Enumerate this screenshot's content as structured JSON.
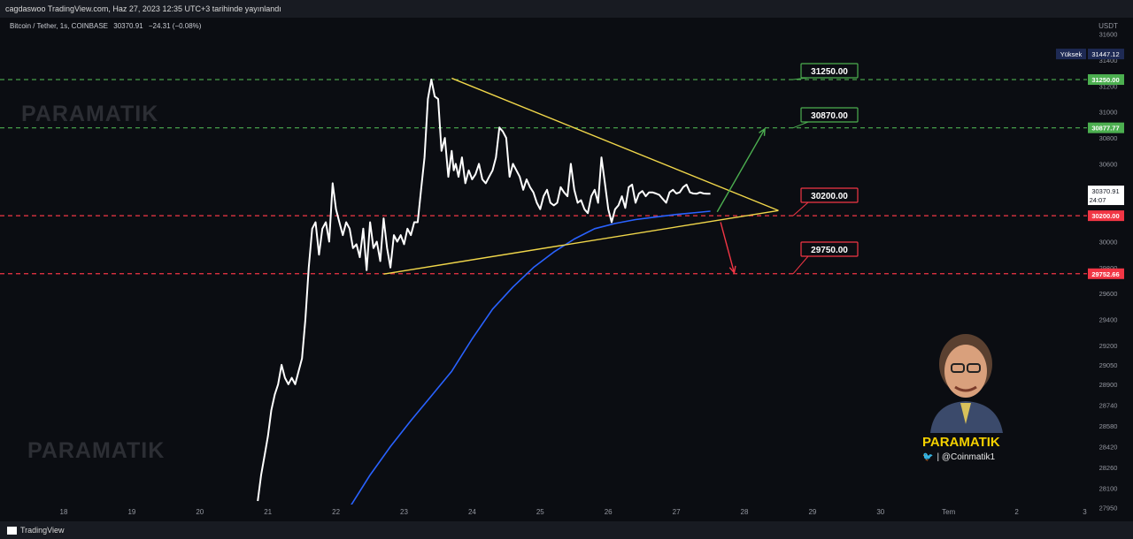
{
  "header": {
    "publish_text": "cagdaswoo TradingView.com, Haz 27, 2023 12:35 UTC+3 tarihinde yayınlandı"
  },
  "symbol": {
    "name": "Bitcoin / Tether, 1s, COINBASE",
    "last": "30370.91",
    "change": "−24.31 (−0.08%)"
  },
  "price_axis": {
    "currency": "USDT",
    "high_label": "Yüksek",
    "high_value": "31447.12",
    "current_price": "30370.91",
    "countdown": "24:07",
    "ticks": [
      27950,
      28100,
      28260,
      28420,
      28580,
      28740,
      28900,
      29050,
      29200,
      29400,
      29600,
      29800,
      30000,
      30200,
      30400,
      30600,
      30800,
      31000,
      31200,
      31400,
      31600
    ]
  },
  "time_axis": {
    "ticks": [
      "18",
      "19",
      "20",
      "21",
      "22",
      "23",
      "24",
      "25",
      "26",
      "27",
      "28",
      "29",
      "30",
      "Tem",
      "2",
      "3"
    ]
  },
  "levels": [
    {
      "label": "31250.00",
      "axis_label": "31250.00",
      "price": 31250,
      "color": "#4caf50"
    },
    {
      "label": "30870.00",
      "axis_label": "30877.77",
      "price": 30877.77,
      "color": "#4caf50"
    },
    {
      "label": "30200.00",
      "axis_label": "30200.00",
      "price": 30200,
      "color": "#f23645"
    },
    {
      "label": "29750.00",
      "axis_label": "29752.66",
      "price": 29752.66,
      "color": "#f23645"
    }
  ],
  "watermarks": [
    "PARAMATIK",
    "PARAMATIK"
  ],
  "branding": {
    "name": "PARAMATIK",
    "handle": "| @Coinmatik1",
    "footer": "TradingView"
  },
  "colors": {
    "background": "#0b0d12",
    "price_line": "#ffffff",
    "ma_line": "#2962ff",
    "triangle": "#f0d64a",
    "up_arrow": "#4caf50",
    "down_arrow": "#f23645"
  },
  "chart_data": {
    "type": "line",
    "title": "Bitcoin / Tether, 1s, COINBASE",
    "ylabel": "USDT",
    "ylim": [
      27850,
      31700
    ],
    "x_unit": "day of month (June 2023)",
    "series": [
      {
        "color": "#ffffff",
        "x": [
          20.85,
          20.9,
          20.95,
          21.0,
          21.05,
          21.1,
          21.15,
          21.2,
          21.25,
          21.3,
          21.35,
          21.4,
          21.45,
          21.5,
          21.55,
          21.6,
          21.65,
          21.7,
          21.75,
          21.8,
          21.85,
          21.9,
          21.95,
          22.0,
          22.05,
          22.1,
          22.15,
          22.2,
          22.25,
          22.3,
          22.35,
          22.4,
          22.45,
          22.5,
          22.55,
          22.6,
          22.65,
          22.7,
          22.75,
          22.8,
          22.85,
          22.9,
          22.95,
          23.0,
          23.05,
          23.1,
          23.15,
          23.2,
          23.25,
          23.3,
          23.35,
          23.4,
          23.45,
          23.5,
          23.55,
          23.6,
          23.65,
          23.7,
          23.73,
          23.76,
          23.8,
          23.85,
          23.9,
          23.95,
          24.0,
          24.05,
          24.1,
          24.15,
          24.2,
          24.25,
          24.3,
          24.35,
          24.4,
          24.45,
          24.5,
          24.55,
          24.6,
          24.65,
          24.7,
          24.75,
          24.8,
          24.85,
          24.9,
          24.95,
          25.0,
          25.05,
          25.1,
          25.15,
          25.2,
          25.25,
          25.3,
          25.35,
          25.4,
          25.45,
          25.5,
          25.55,
          25.6,
          25.65,
          25.7,
          25.75,
          25.8,
          25.85,
          25.9,
          25.95,
          26.0,
          26.05,
          26.1,
          26.15,
          26.2,
          26.25,
          26.3,
          26.35,
          26.4,
          26.45,
          26.5,
          26.55,
          26.6,
          26.65,
          26.7,
          26.75,
          26.8,
          26.85,
          26.9,
          26.95,
          27.0,
          27.05,
          27.1,
          27.15,
          27.2,
          27.25,
          27.3,
          27.35,
          27.4,
          27.45,
          27.5
        ],
        "y": [
          28000,
          28200,
          28350,
          28500,
          28700,
          28820,
          28900,
          29050,
          28950,
          28900,
          28950,
          28900,
          29000,
          29100,
          29400,
          29800,
          30100,
          30150,
          29900,
          30100,
          30150,
          30000,
          30450,
          30250,
          30150,
          30050,
          30150,
          30100,
          29950,
          29980,
          29880,
          30100,
          29780,
          30150,
          29950,
          30000,
          29850,
          30180,
          29950,
          29800,
          30050,
          30000,
          30050,
          29980,
          30100,
          30050,
          30150,
          30150,
          30400,
          30650,
          31100,
          31250,
          31120,
          31100,
          30700,
          30800,
          30500,
          30700,
          30550,
          30600,
          30500,
          30650,
          30450,
          30550,
          30480,
          30520,
          30600,
          30480,
          30450,
          30500,
          30550,
          30650,
          30880,
          30850,
          30800,
          30500,
          30600,
          30550,
          30500,
          30400,
          30480,
          30420,
          30380,
          30300,
          30250,
          30350,
          30400,
          30300,
          30280,
          30300,
          30420,
          30380,
          30350,
          30600,
          30400,
          30300,
          30320,
          30250,
          30220,
          30350,
          30400,
          30300,
          30650,
          30450,
          30250,
          30150,
          30250,
          30280,
          30350,
          30260,
          30420,
          30440,
          30300,
          30370,
          30390,
          30350,
          30380,
          30380,
          30371,
          30360,
          30330,
          30300,
          30380,
          30400,
          30371,
          30380,
          30420,
          30440,
          30380,
          30371,
          30370,
          30380,
          30371,
          30370,
          30370
        ]
      },
      {
        "color": "#2962ff",
        "x": [
          22.2,
          22.5,
          22.8,
          23.1,
          23.4,
          23.7,
          24.0,
          24.3,
          24.6,
          24.9,
          25.2,
          25.5,
          25.8,
          26.1,
          26.4,
          26.7,
          27.0,
          27.3,
          27.5
        ],
        "y": [
          27950,
          28200,
          28420,
          28620,
          28810,
          29000,
          29250,
          29480,
          29650,
          29800,
          29920,
          30020,
          30100,
          30140,
          30170,
          30190,
          30210,
          30225,
          30235
        ]
      }
    ],
    "annotations": {
      "triangle_upper": [
        [
          23.7,
          31260
        ],
        [
          28.5,
          30240
        ]
      ],
      "triangle_lower": [
        [
          22.7,
          29750
        ],
        [
          28.5,
          30240
        ]
      ],
      "up_arrow": [
        [
          27.6,
          30230
        ],
        [
          28.3,
          30870
        ]
      ],
      "down_arrow": [
        [
          27.65,
          30150
        ],
        [
          27.85,
          29760
        ]
      ]
    }
  }
}
